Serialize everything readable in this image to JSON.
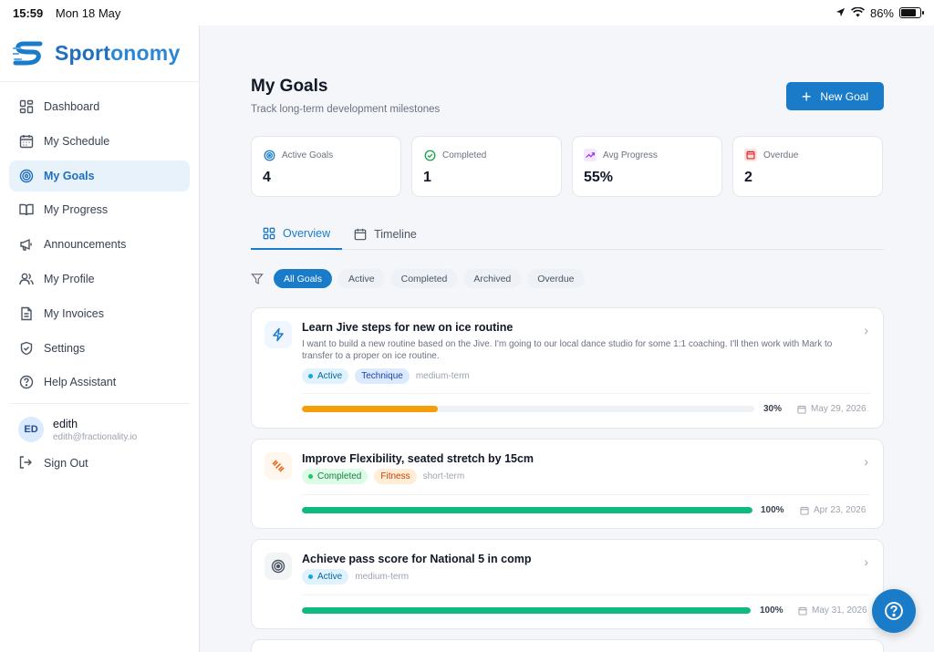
{
  "statusbar": {
    "time": "15:59",
    "date": "Mon 18 May",
    "battery": "86%"
  },
  "brand": {
    "name_a": "Sport",
    "name_b": "onomy"
  },
  "sidebar": {
    "items": [
      {
        "label": "Dashboard",
        "icon": "grid-icon"
      },
      {
        "label": "My Schedule",
        "icon": "calendar-icon"
      },
      {
        "label": "My Goals",
        "icon": "target-icon",
        "active": true
      },
      {
        "label": "My Progress",
        "icon": "book-icon"
      },
      {
        "label": "Announcements",
        "icon": "megaphone-icon"
      },
      {
        "label": "My Profile",
        "icon": "users-icon"
      },
      {
        "label": "My Invoices",
        "icon": "document-icon"
      },
      {
        "label": "Settings",
        "icon": "shield-icon"
      },
      {
        "label": "Help Assistant",
        "icon": "help-circle-icon"
      }
    ],
    "user": {
      "initials": "ED",
      "name": "edith",
      "email": "edith@fractionality.io"
    },
    "sign_out": "Sign Out"
  },
  "page": {
    "title": "My Goals",
    "subtitle": "Track long-term development milestones",
    "new_goal": "New Goal"
  },
  "stats": [
    {
      "label": "Active Goals",
      "value": "4",
      "icon": "target-icon",
      "color": "#1a7cc9"
    },
    {
      "label": "Completed",
      "value": "1",
      "icon": "check-circle-icon",
      "color": "#16a34a"
    },
    {
      "label": "Avg Progress",
      "value": "55%",
      "icon": "trending-up-icon",
      "color": "#9333ea"
    },
    {
      "label": "Overdue",
      "value": "2",
      "icon": "calendar-icon",
      "color": "#dc2626"
    }
  ],
  "tabs": [
    {
      "label": "Overview",
      "active": true
    },
    {
      "label": "Timeline"
    }
  ],
  "filters": [
    "All Goals",
    "Active",
    "Completed",
    "Archived",
    "Overdue"
  ],
  "goals": [
    {
      "title": "Learn Jive steps for new on ice routine",
      "description": "I want to build a new routine based on the Jive. I'm going to our local dance studio for some 1:1 coaching. I'll then work with Mark to transfer to a proper on ice routine.",
      "status": "Active",
      "category": "Technique",
      "term": "medium-term",
      "progress": 30,
      "progress_label": "30%",
      "due": "May 29, 2026",
      "bar_color": "#f59e0b",
      "icon": "lightning-icon"
    },
    {
      "title": "Improve Flexibility, seated stretch by 15cm",
      "status": "Completed",
      "category": "Fitness",
      "term": "short-term",
      "progress": 100,
      "progress_label": "100%",
      "due": "Apr 23, 2026",
      "bar_color": "#10b981",
      "icon": "dumbbell-icon"
    },
    {
      "title": "Achieve pass score for National 5 in comp",
      "status": "Active",
      "term": "medium-term",
      "progress": 100,
      "progress_label": "100%",
      "due": "May 31, 2026",
      "bar_color": "#10b981",
      "icon": "target-icon"
    }
  ]
}
